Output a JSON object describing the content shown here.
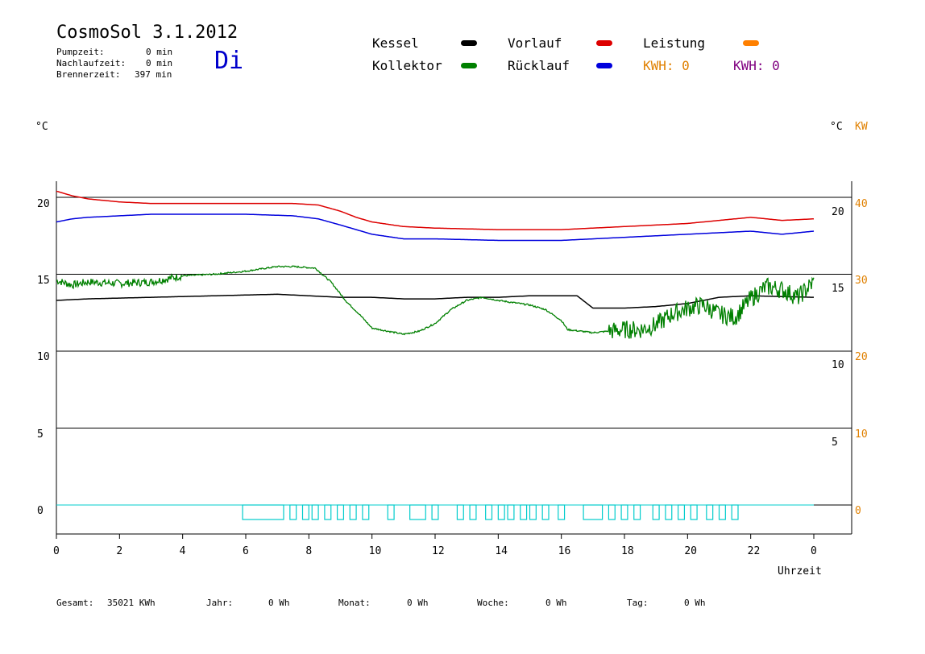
{
  "header": {
    "title": "CosmoSol 3.1.2012",
    "day": "Di",
    "stats": [
      {
        "label": "Pumpzeit:",
        "value": "0 min"
      },
      {
        "label": "Nachlaufzeit:",
        "value": "0 min"
      },
      {
        "label": "Brennerzeit:",
        "value": "397 min"
      }
    ]
  },
  "legend": {
    "items": [
      {
        "name": "Kessel",
        "color": "#000000"
      },
      {
        "name": "Kollektor",
        "color": "#008000"
      },
      {
        "name": "Vorlauf",
        "color": "#dd0000"
      },
      {
        "name": "Rücklauf",
        "color": "#0000dd"
      },
      {
        "name": "Leistung",
        "color": "#ff8000"
      }
    ],
    "kwh_orange": "KWH: 0",
    "kwh_purple": "KWH: 0",
    "kwh_orange_color": "#e08000",
    "kwh_purple_color": "#800080"
  },
  "axes": {
    "left_unit": "°C",
    "right_unit_c": "°C",
    "right_unit_kw": "KW",
    "left_ticks": [
      "20",
      "15",
      "10",
      "5",
      "0"
    ],
    "right_c_ticks": [
      "20",
      "15",
      "10",
      "5"
    ],
    "right_kw_ticks": [
      "40",
      "30",
      "20",
      "10",
      "0"
    ],
    "x_ticks": [
      "0",
      "2",
      "4",
      "6",
      "8",
      "10",
      "12",
      "14",
      "16",
      "18",
      "20",
      "22",
      "0"
    ],
    "x_label": "Uhrzeit"
  },
  "footer": {
    "gesamt_label": "Gesamt:",
    "gesamt_value": "35021 KWh",
    "jahr_label": "Jahr:",
    "jahr_value": "0 Wh",
    "monat_label": "Monat:",
    "monat_value": "0 Wh",
    "woche_label": "Woche:",
    "woche_value": "0 Wh",
    "tag_label": "Tag:",
    "tag_value": "0 Wh"
  },
  "chart_data": {
    "type": "line",
    "xlabel": "Uhrzeit",
    "ylabel": "°C",
    "xlim": [
      0,
      24
    ],
    "ylim": [
      -2,
      21
    ],
    "grid": true,
    "series": [
      {
        "name": "Vorlauf",
        "color": "#dd0000",
        "points": [
          [
            0,
            20.4
          ],
          [
            0.5,
            20.1
          ],
          [
            1,
            19.9
          ],
          [
            2,
            19.7
          ],
          [
            3,
            19.6
          ],
          [
            6,
            19.6
          ],
          [
            7.5,
            19.6
          ],
          [
            8.3,
            19.5
          ],
          [
            9,
            19.1
          ],
          [
            9.5,
            18.7
          ],
          [
            10,
            18.4
          ],
          [
            11,
            18.1
          ],
          [
            12,
            18.0
          ],
          [
            14,
            17.9
          ],
          [
            16,
            17.9
          ],
          [
            17,
            18.0
          ],
          [
            18,
            18.1
          ],
          [
            19,
            18.2
          ],
          [
            20,
            18.3
          ],
          [
            21,
            18.5
          ],
          [
            22,
            18.7
          ],
          [
            23,
            18.5
          ],
          [
            24,
            18.6
          ]
        ]
      },
      {
        "name": "Rücklauf",
        "color": "#0000dd",
        "points": [
          [
            0,
            18.4
          ],
          [
            0.5,
            18.6
          ],
          [
            1,
            18.7
          ],
          [
            2,
            18.8
          ],
          [
            3,
            18.9
          ],
          [
            6,
            18.9
          ],
          [
            7.5,
            18.8
          ],
          [
            8.3,
            18.6
          ],
          [
            9,
            18.2
          ],
          [
            9.5,
            17.9
          ],
          [
            10,
            17.6
          ],
          [
            11,
            17.3
          ],
          [
            12,
            17.3
          ],
          [
            14,
            17.2
          ],
          [
            16,
            17.2
          ],
          [
            17,
            17.3
          ],
          [
            18,
            17.4
          ],
          [
            19,
            17.5
          ],
          [
            20,
            17.6
          ],
          [
            21,
            17.7
          ],
          [
            22,
            17.8
          ],
          [
            23,
            17.6
          ],
          [
            24,
            17.8
          ]
        ]
      },
      {
        "name": "Kessel",
        "color": "#000000",
        "points": [
          [
            0,
            13.3
          ],
          [
            1,
            13.4
          ],
          [
            3,
            13.5
          ],
          [
            5,
            13.6
          ],
          [
            7,
            13.7
          ],
          [
            8,
            13.6
          ],
          [
            9,
            13.5
          ],
          [
            10,
            13.5
          ],
          [
            11,
            13.4
          ],
          [
            12,
            13.4
          ],
          [
            13,
            13.5
          ],
          [
            14,
            13.5
          ],
          [
            15,
            13.6
          ],
          [
            16.5,
            13.6
          ],
          [
            17,
            12.8
          ],
          [
            18,
            12.8
          ],
          [
            19,
            12.9
          ],
          [
            20,
            13.1
          ],
          [
            21,
            13.5
          ],
          [
            22,
            13.6
          ],
          [
            24,
            13.5
          ]
        ]
      },
      {
        "name": "Kollektor",
        "color": "#008000",
        "points": [
          [
            0,
            14.6
          ],
          [
            0.5,
            14.3
          ],
          [
            1,
            14.5
          ],
          [
            2,
            14.4
          ],
          [
            3,
            14.5
          ],
          [
            4,
            14.9
          ],
          [
            5,
            15.0
          ],
          [
            6,
            15.2
          ],
          [
            7,
            15.5
          ],
          [
            7.5,
            15.5
          ],
          [
            8.2,
            15.4
          ],
          [
            8.7,
            14.5
          ],
          [
            9.2,
            13.2
          ],
          [
            9.6,
            12.4
          ],
          [
            10,
            11.5
          ],
          [
            10.5,
            11.3
          ],
          [
            11,
            11.1
          ],
          [
            11.5,
            11.3
          ],
          [
            12,
            11.8
          ],
          [
            12.5,
            12.7
          ],
          [
            13,
            13.3
          ],
          [
            13.5,
            13.5
          ],
          [
            14,
            13.3
          ],
          [
            15,
            13.0
          ],
          [
            15.5,
            12.7
          ],
          [
            16,
            12.0
          ],
          [
            16.2,
            11.4
          ],
          [
            17,
            11.2
          ],
          [
            18,
            11.4
          ],
          [
            18.5,
            11.4
          ],
          [
            19,
            11.7
          ],
          [
            19.5,
            12.4
          ],
          [
            20,
            12.8
          ],
          [
            20.5,
            13.0
          ],
          [
            21,
            12.4
          ],
          [
            21.5,
            12.2
          ],
          [
            22,
            13.4
          ],
          [
            22.5,
            14.2
          ],
          [
            23,
            14.0
          ],
          [
            23.5,
            13.5
          ],
          [
            24,
            14.5
          ]
        ]
      }
    ],
    "x_tick_labels": [
      "0",
      "2",
      "4",
      "6",
      "8",
      "10",
      "12",
      "14",
      "16",
      "18",
      "20",
      "22",
      "0"
    ],
    "y_tick_labels": [
      "0",
      "5",
      "10",
      "15",
      "20"
    ],
    "pump_segments_hours": [
      [
        5.9,
        7.2
      ],
      [
        7.4,
        7.6
      ],
      [
        7.8,
        8.0
      ],
      [
        8.1,
        8.3
      ],
      [
        8.5,
        8.7
      ],
      [
        8.9,
        9.1
      ],
      [
        9.3,
        9.5
      ],
      [
        9.7,
        9.9
      ],
      [
        10.5,
        10.7
      ],
      [
        11.2,
        11.7
      ],
      [
        11.9,
        12.1
      ],
      [
        12.7,
        12.9
      ],
      [
        13.1,
        13.3
      ],
      [
        13.6,
        13.8
      ],
      [
        14.0,
        14.2
      ],
      [
        14.3,
        14.5
      ],
      [
        14.7,
        14.9
      ],
      [
        15.0,
        15.2
      ],
      [
        15.4,
        15.6
      ],
      [
        15.9,
        16.1
      ],
      [
        16.7,
        17.3
      ],
      [
        17.5,
        17.7
      ],
      [
        17.9,
        18.1
      ],
      [
        18.3,
        18.5
      ],
      [
        18.9,
        19.1
      ],
      [
        19.3,
        19.5
      ],
      [
        19.7,
        19.9
      ],
      [
        20.1,
        20.3
      ],
      [
        20.6,
        20.8
      ],
      [
        21.0,
        21.2
      ],
      [
        21.4,
        21.6
      ]
    ]
  }
}
